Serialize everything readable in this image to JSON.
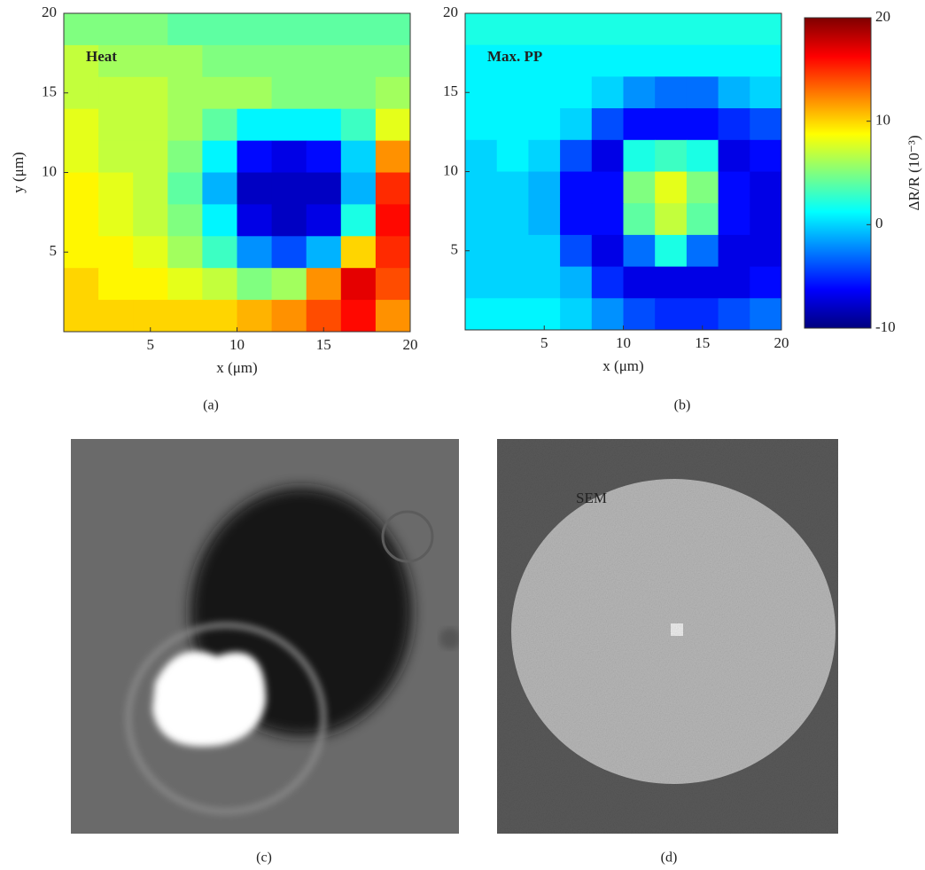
{
  "chart_data": [
    {
      "type": "heatmap",
      "annotation": "Heat",
      "xlabel": "x (μm)",
      "ylabel": "y (μm)",
      "xlim": [
        0,
        20
      ],
      "ylim": [
        0,
        20
      ],
      "xticks": [
        5,
        10,
        15,
        20
      ],
      "yticks": [
        5,
        10,
        15,
        20
      ],
      "x": [
        1,
        3,
        5,
        7,
        9,
        11,
        13,
        15,
        17,
        19
      ],
      "y": [
        19,
        17,
        15,
        13,
        11,
        9,
        7,
        5,
        3,
        1
      ],
      "clim": [
        -10,
        20
      ],
      "z": [
        [
          5,
          5,
          5,
          4,
          4,
          4,
          4,
          4,
          4,
          4
        ],
        [
          7,
          6,
          6,
          6,
          5,
          5,
          5,
          5,
          5,
          5
        ],
        [
          7,
          7,
          7,
          6,
          6,
          6,
          5,
          5,
          5,
          6
        ],
        [
          8,
          7,
          7,
          6,
          4,
          1,
          1,
          1,
          3,
          8
        ],
        [
          8,
          7,
          7,
          5,
          1,
          -6,
          -7,
          -6,
          0,
          12
        ],
        [
          9,
          8,
          7,
          4,
          -1,
          -8,
          -8,
          -8,
          -1,
          15
        ],
        [
          9,
          8,
          7,
          5,
          1,
          -7,
          -8,
          -7,
          2,
          16
        ],
        [
          9,
          9,
          8,
          6,
          3,
          -2,
          -4,
          -1,
          10,
          15
        ],
        [
          10,
          9,
          9,
          8,
          7,
          5,
          6,
          12,
          17,
          14
        ],
        [
          10,
          10,
          10,
          10,
          10,
          11,
          12,
          14,
          16,
          12
        ]
      ]
    },
    {
      "type": "heatmap",
      "annotation": "Max. PP",
      "xlabel": "x (μm)",
      "xlim": [
        0,
        20
      ],
      "ylim": [
        0,
        20
      ],
      "xticks": [
        5,
        10,
        15,
        20
      ],
      "yticks": [
        5,
        10,
        15,
        20
      ],
      "x": [
        1,
        3,
        5,
        7,
        9,
        11,
        13,
        15,
        17,
        19
      ],
      "y": [
        19,
        17,
        15,
        13,
        11,
        9,
        7,
        5,
        3,
        1
      ],
      "clim": [
        -10,
        20
      ],
      "cticks": [
        -10,
        0,
        10,
        20
      ],
      "colorbar_label": "ΔR/R (10⁻³)",
      "z": [
        [
          2,
          2,
          2,
          2,
          2,
          2,
          2,
          2,
          2,
          2
        ],
        [
          1,
          1,
          1,
          1,
          1,
          1,
          1,
          1,
          1,
          1
        ],
        [
          1,
          1,
          1,
          1,
          0,
          -2,
          -3,
          -3,
          -1,
          0
        ],
        [
          1,
          1,
          1,
          0,
          -4,
          -6,
          -6,
          -6,
          -5,
          -4
        ],
        [
          0,
          1,
          0,
          -4,
          -7,
          2,
          3,
          2,
          -7,
          -6
        ],
        [
          0,
          0,
          -1,
          -6,
          -6,
          5,
          8,
          5,
          -6,
          -7
        ],
        [
          0,
          0,
          -1,
          -6,
          -6,
          4,
          7,
          4,
          -6,
          -7
        ],
        [
          0,
          0,
          0,
          -4,
          -7,
          -3,
          2,
          -3,
          -7,
          -7
        ],
        [
          0,
          0,
          0,
          -1,
          -5,
          -7,
          -7,
          -7,
          -7,
          -6
        ],
        [
          1,
          1,
          1,
          0,
          -2,
          -4,
          -5,
          -5,
          -4,
          -3
        ]
      ]
    }
  ],
  "panel_labels": [
    "(a)",
    "(b)",
    "(c)",
    "(d)"
  ],
  "image_annotation": "SEM"
}
